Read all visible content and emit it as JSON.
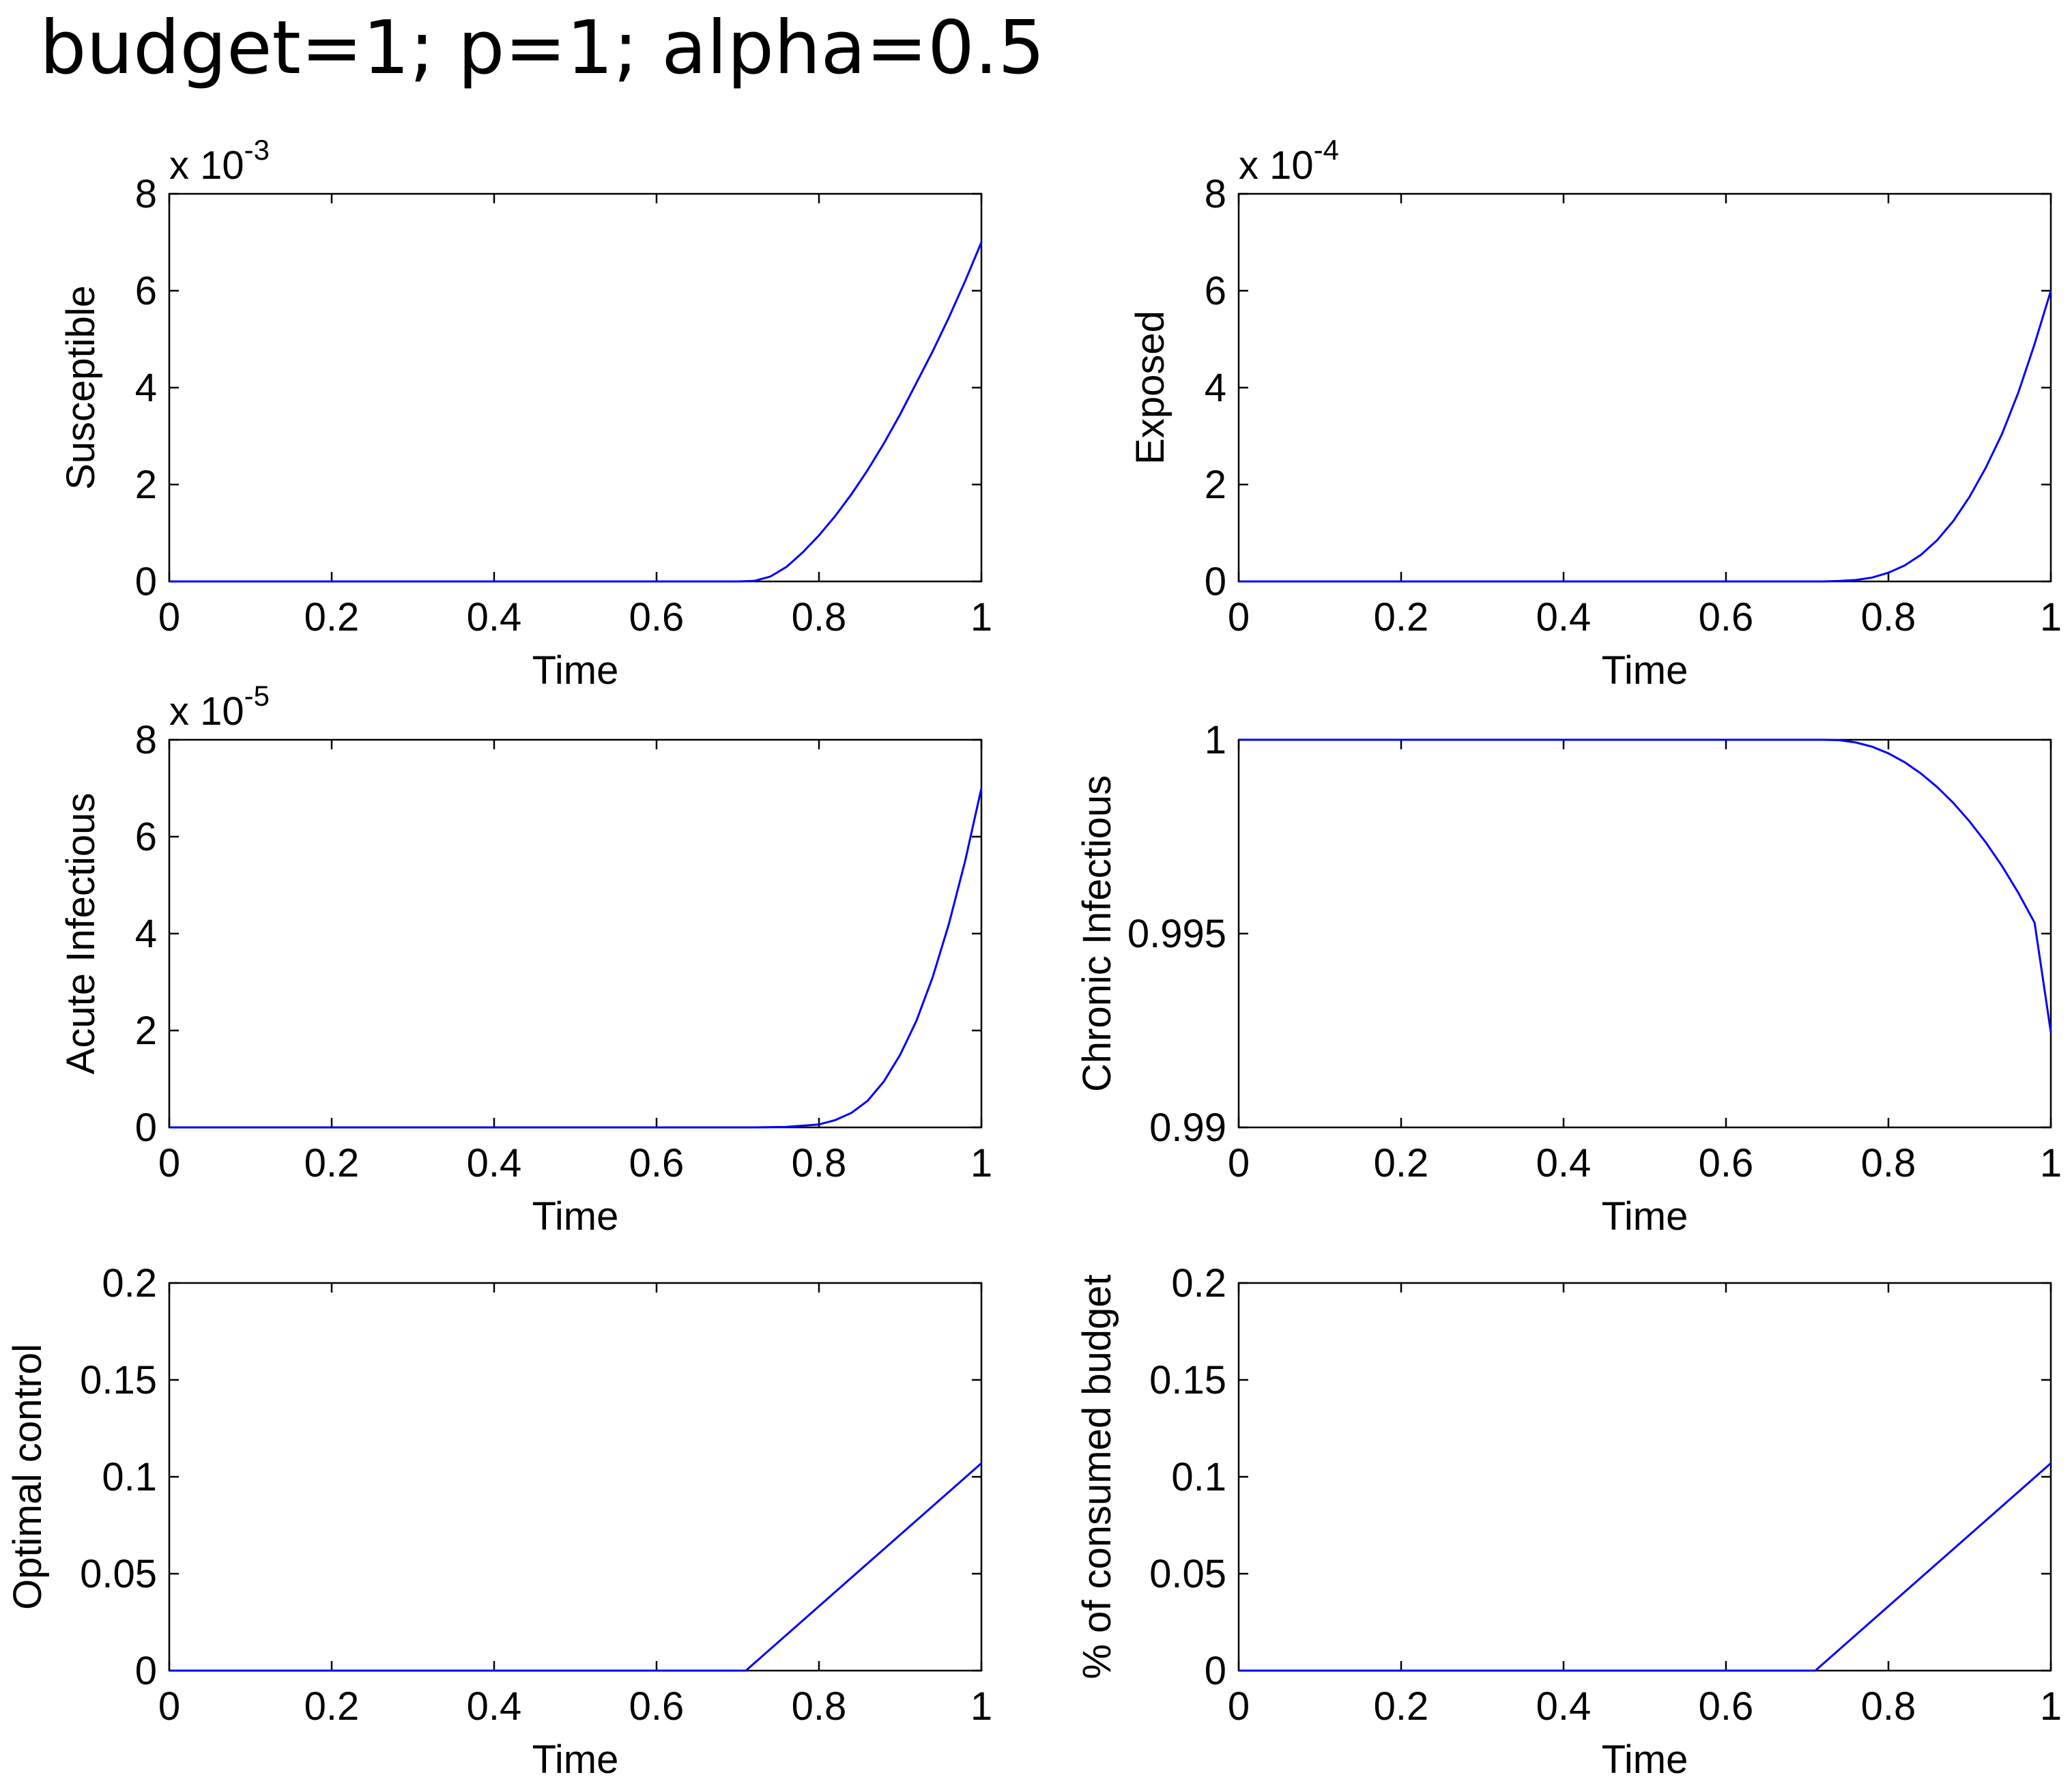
{
  "title": "budget=1; p=1; alpha=0.5",
  "chart_data": [
    {
      "type": "line",
      "ylabel": "Susceptible",
      "xlabel": "Time",
      "xlim": [
        0,
        1
      ],
      "ylim": [
        0,
        8
      ],
      "exponent_label": {
        "base": "x 10",
        "exp": "-3"
      },
      "xticks": [
        "0",
        "0.2",
        "0.4",
        "0.6",
        "0.8",
        "1"
      ],
      "yticks": [
        "0",
        "2",
        "4",
        "6",
        "8"
      ],
      "grid": false,
      "series": [
        {
          "color": "#0000ff",
          "x": [
            0,
            0.7,
            0.72,
            0.74,
            0.76,
            0.78,
            0.8,
            0.82,
            0.84,
            0.86,
            0.88,
            0.9,
            0.92,
            0.94,
            0.96,
            0.98,
            1.0
          ],
          "y": [
            0,
            0,
            0.01,
            0.1,
            0.3,
            0.6,
            0.95,
            1.35,
            1.8,
            2.3,
            2.85,
            3.45,
            4.1,
            4.75,
            5.45,
            6.2,
            7.0
          ]
        }
      ]
    },
    {
      "type": "line",
      "ylabel": "Exposed",
      "xlabel": "Time",
      "xlim": [
        0,
        1
      ],
      "ylim": [
        0,
        8
      ],
      "exponent_label": {
        "base": "x 10",
        "exp": "-4"
      },
      "xticks": [
        "0",
        "0.2",
        "0.4",
        "0.6",
        "0.8",
        "1"
      ],
      "yticks": [
        "0",
        "2",
        "4",
        "6",
        "8"
      ],
      "grid": false,
      "series": [
        {
          "color": "#0000ff",
          "x": [
            0,
            0.7,
            0.72,
            0.74,
            0.76,
            0.78,
            0.8,
            0.82,
            0.84,
            0.86,
            0.88,
            0.9,
            0.92,
            0.94,
            0.96,
            0.98,
            1.0
          ],
          "y": [
            0,
            0,
            0.0,
            0.01,
            0.03,
            0.08,
            0.18,
            0.33,
            0.55,
            0.85,
            1.25,
            1.75,
            2.35,
            3.05,
            3.9,
            4.9,
            6.0
          ]
        }
      ]
    },
    {
      "type": "line",
      "ylabel": "Acute Infectious",
      "xlabel": "Time",
      "xlim": [
        0,
        1
      ],
      "ylim": [
        0,
        8
      ],
      "exponent_label": {
        "base": "x 10",
        "exp": "-5"
      },
      "xticks": [
        "0",
        "0.2",
        "0.4",
        "0.6",
        "0.8",
        "1"
      ],
      "yticks": [
        "0",
        "2",
        "4",
        "6",
        "8"
      ],
      "grid": false,
      "series": [
        {
          "color": "#0000ff",
          "x": [
            0,
            0.72,
            0.76,
            0.8,
            0.82,
            0.84,
            0.86,
            0.88,
            0.9,
            0.92,
            0.94,
            0.96,
            0.98,
            1.0
          ],
          "y": [
            0,
            0,
            0.01,
            0.06,
            0.15,
            0.3,
            0.55,
            0.95,
            1.5,
            2.2,
            3.1,
            4.2,
            5.5,
            7.0
          ]
        }
      ]
    },
    {
      "type": "line",
      "ylabel": "Chronic Infectious",
      "xlabel": "Time",
      "xlim": [
        0,
        1
      ],
      "ylim": [
        0.99,
        1
      ],
      "xticks": [
        "0",
        "0.2",
        "0.4",
        "0.6",
        "0.8",
        "1"
      ],
      "yticks": [
        "0.99",
        "0.995",
        "1"
      ],
      "ytick_values": [
        0.99,
        0.995,
        1
      ],
      "grid": false,
      "series": [
        {
          "color": "#0000ff",
          "x": [
            0,
            0.72,
            0.74,
            0.76,
            0.78,
            0.8,
            0.82,
            0.84,
            0.86,
            0.88,
            0.9,
            0.92,
            0.94,
            0.96,
            0.98,
            1.0
          ],
          "y": [
            1.0,
            1.0,
            0.99999,
            0.99993,
            0.99982,
            0.99965,
            0.99942,
            0.99913,
            0.99878,
            0.99837,
            0.99789,
            0.99735,
            0.99674,
            0.99605,
            0.99528,
            0.99245
          ]
        }
      ]
    },
    {
      "type": "line",
      "ylabel": "Optimal control",
      "xlabel": "Time",
      "xlim": [
        0,
        1
      ],
      "ylim": [
        0,
        0.2
      ],
      "xticks": [
        "0",
        "0.2",
        "0.4",
        "0.6",
        "0.8",
        "1"
      ],
      "yticks": [
        "0",
        "0.05",
        "0.1",
        "0.15",
        "0.2"
      ],
      "grid": false,
      "series": [
        {
          "color": "#0000ff",
          "x": [
            0,
            0.71,
            1.0
          ],
          "y": [
            0,
            0,
            0.107
          ]
        }
      ]
    },
    {
      "type": "line",
      "ylabel": "% of consumed budget",
      "xlabel": "Time",
      "xlim": [
        0,
        1
      ],
      "ylim": [
        0,
        0.2
      ],
      "xticks": [
        "0",
        "0.2",
        "0.4",
        "0.6",
        "0.8",
        "1"
      ],
      "yticks": [
        "0",
        "0.05",
        "0.1",
        "0.15",
        "0.2"
      ],
      "grid": false,
      "series": [
        {
          "color": "#0000ff",
          "x": [
            0,
            0.71,
            1.0
          ],
          "y": [
            0,
            0,
            0.107
          ]
        }
      ]
    }
  ]
}
